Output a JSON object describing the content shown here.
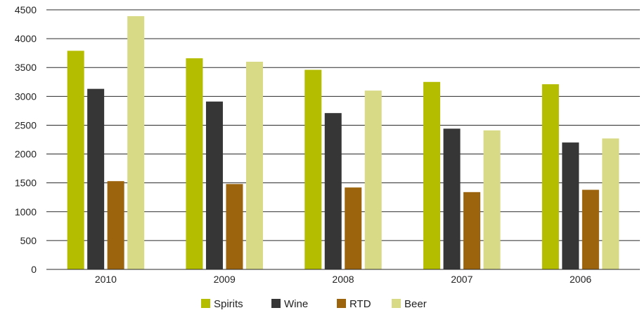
{
  "chart_data": {
    "type": "bar",
    "categories": [
      "2010",
      "2009",
      "2008",
      "2007",
      "2006"
    ],
    "series": [
      {
        "name": "Spirits",
        "color": "#b5bd00",
        "values": [
          3790,
          3660,
          3460,
          3250,
          3210
        ]
      },
      {
        "name": "Wine",
        "color": "#363636",
        "values": [
          3130,
          2910,
          2710,
          2440,
          2200
        ]
      },
      {
        "name": "RTD",
        "color": "#9c640c",
        "values": [
          1530,
          1480,
          1420,
          1340,
          1380
        ]
      },
      {
        "name": "Beer",
        "color": "#d8da86",
        "values": [
          4390,
          3600,
          3100,
          2410,
          2270
        ]
      }
    ],
    "ylim": [
      0,
      4500
    ],
    "yticks": [
      0,
      500,
      1000,
      1500,
      2000,
      2500,
      3000,
      3500,
      4000,
      4500
    ],
    "grid": true,
    "legend": "bottom-center"
  }
}
